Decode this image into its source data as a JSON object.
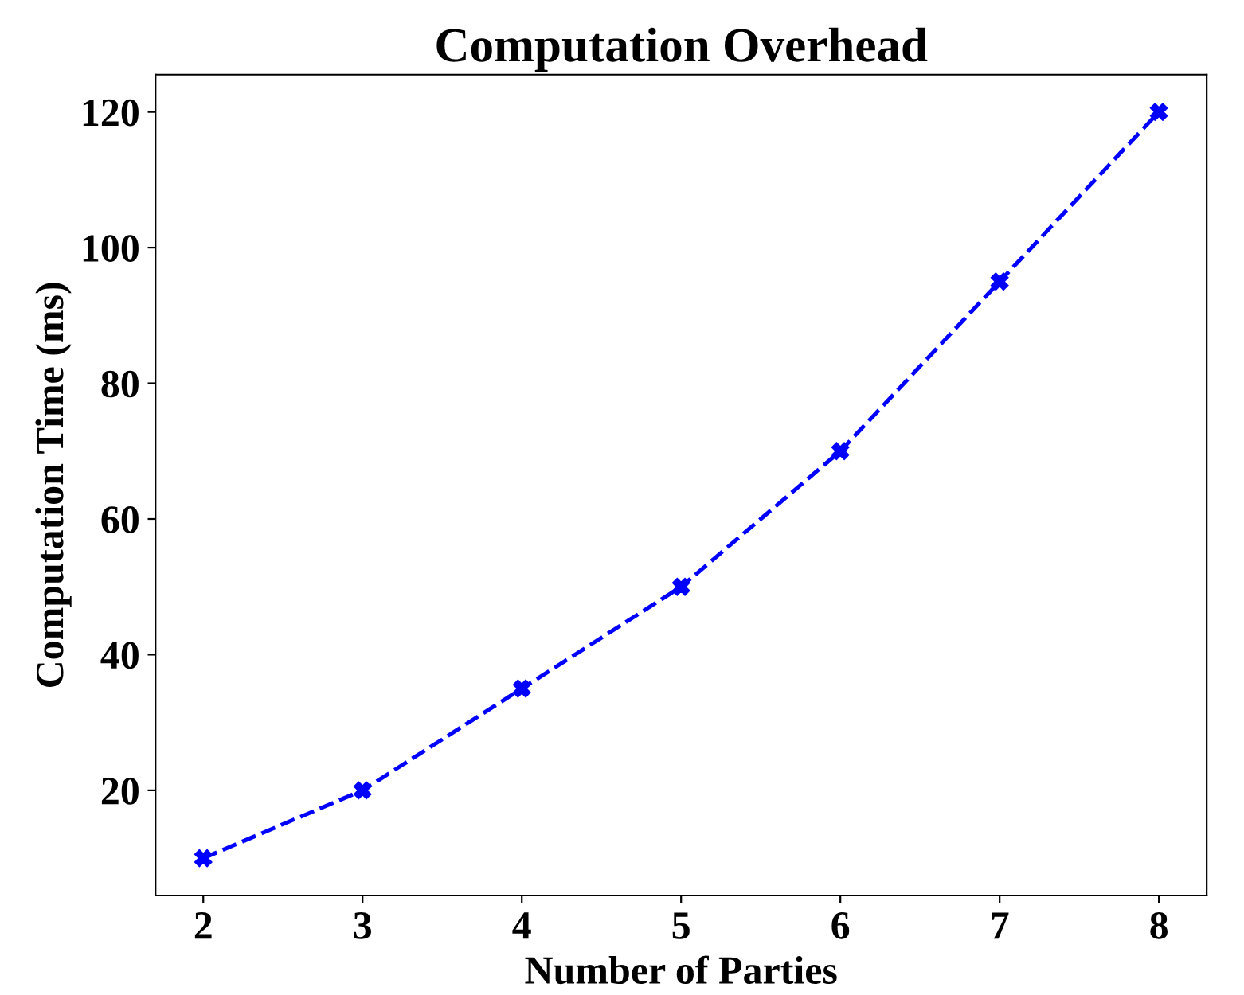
{
  "chart_data": {
    "type": "line",
    "title": "Computation Overhead",
    "xlabel": "Number of Parties",
    "ylabel": "Computation Time (ms)",
    "x": [
      2,
      3,
      4,
      5,
      6,
      7,
      8
    ],
    "series": [
      {
        "color": "#0000ff",
        "values": [
          10,
          20,
          35,
          50,
          70,
          95,
          120
        ]
      }
    ],
    "marker": "cross",
    "line_style": "dashed",
    "xlim": [
      1.7,
      8.3
    ],
    "xticks": [
      2,
      3,
      4,
      5,
      6,
      7,
      8
    ],
    "ylim": [
      4.5,
      125.5
    ],
    "yticks": [
      20,
      40,
      60,
      80,
      100,
      120
    ]
  }
}
